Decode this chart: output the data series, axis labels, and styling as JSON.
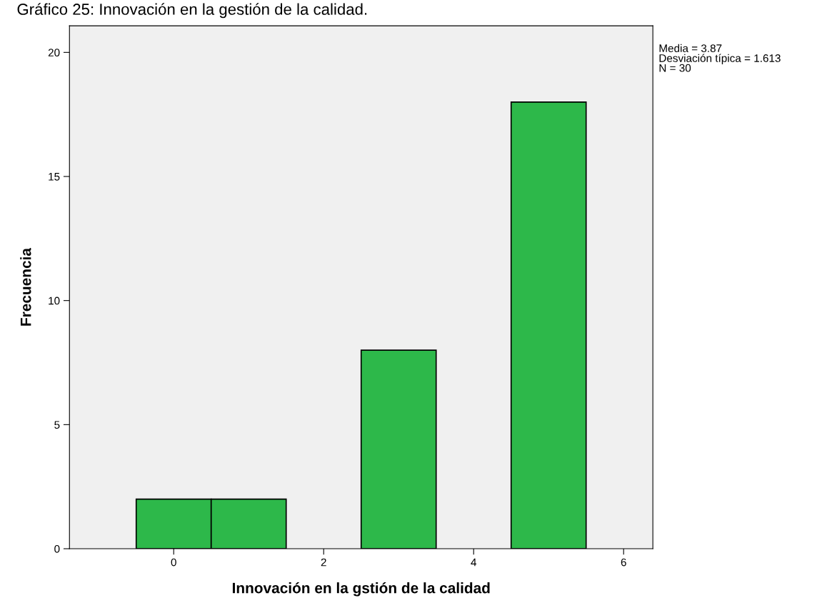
{
  "chart_data": {
    "type": "histogram",
    "title": "Gráfico 25: Innovación en la gestión de la calidad.",
    "xlabel": "Innovación en la gstión de la calidad",
    "ylabel": "Frecuencia",
    "bins": [
      -0.5,
      0.5,
      1.5,
      2.5,
      3.5,
      4.5,
      5.5
    ],
    "values": [
      2,
      2,
      0,
      8,
      0,
      18
    ],
    "color": "#2db84a",
    "xlim": [
      -1.39,
      6.39
    ],
    "xticks": [
      0,
      2,
      4,
      6
    ],
    "ylim": [
      0,
      21.07
    ],
    "yticks": [
      0,
      5,
      10,
      15,
      20
    ],
    "grid": false,
    "annotations": [
      "Media = 3.87",
      "Desviación típica = 1.613",
      "N = 30"
    ]
  }
}
